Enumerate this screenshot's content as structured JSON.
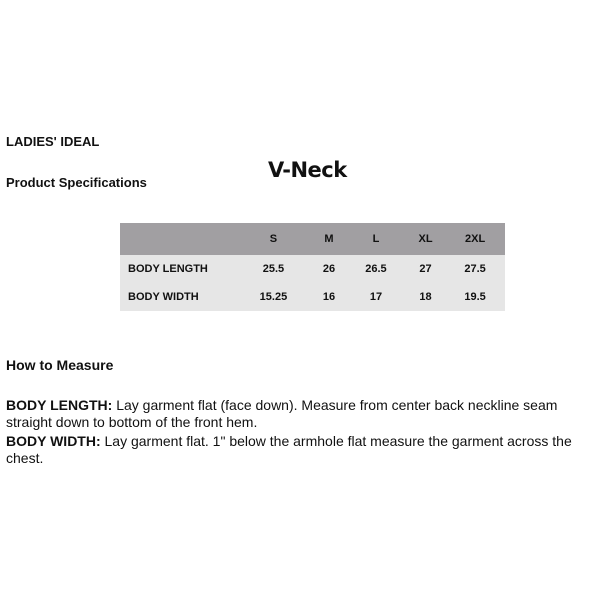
{
  "header": {
    "brand": "LADIES' IDEAL",
    "subtitle": "Product Specifications",
    "style_name": "V-Neck"
  },
  "table": {
    "columns": [
      "",
      "S",
      "M",
      "L",
      "XL",
      "2XL"
    ],
    "rows": [
      {
        "label": "BODY LENGTH",
        "values": [
          "25.5",
          "26",
          "26.5",
          "27",
          "27.5"
        ]
      },
      {
        "label": "BODY WIDTH",
        "values": [
          "15.25",
          "16",
          "17",
          "18",
          "19.5"
        ]
      }
    ]
  },
  "measure": {
    "heading": "How to Measure",
    "items": [
      {
        "term": "BODY LENGTH:",
        "text": " Lay garment flat (face down). Measure from center back neckline seam straight down to bottom of the front hem."
      },
      {
        "term": "BODY WIDTH:",
        "text": " Lay garment flat. 1\" below the armhole flat measure the garment across the chest."
      }
    ]
  },
  "colors": {
    "header_bg": "#a19fa2",
    "body_bg": "#e6e6e6"
  }
}
